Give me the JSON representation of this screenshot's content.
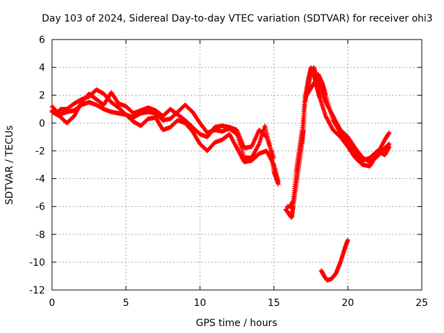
{
  "chart_data": {
    "type": "scatter",
    "title": "Day 103 of 2024, Sidereal Day-to-day VTEC variation (SDTVAR) for receiver ohi3",
    "xlabel": "GPS time / hours",
    "ylabel": "SDTVAR / TECUs",
    "xlim": [
      0,
      25
    ],
    "ylim": [
      -12,
      6
    ],
    "x_ticks": [
      0,
      5,
      10,
      15,
      20,
      25
    ],
    "y_ticks": [
      -12,
      -10,
      -8,
      -6,
      -4,
      -2,
      0,
      2,
      4,
      6
    ],
    "grid": true,
    "marker": "+",
    "color": "#ff0000",
    "series": [
      {
        "name": "track-1",
        "points": [
          [
            0.0,
            0.9
          ],
          [
            0.3,
            0.7
          ],
          [
            0.6,
            1.0
          ],
          [
            1.0,
            1.0
          ],
          [
            1.5,
            1.4
          ],
          [
            2.0,
            1.7
          ],
          [
            2.5,
            1.9
          ],
          [
            3.0,
            2.4
          ],
          [
            3.5,
            2.1
          ],
          [
            4.0,
            1.5
          ],
          [
            4.5,
            1.1
          ],
          [
            5.0,
            0.6
          ],
          [
            5.5,
            0.4
          ],
          [
            6.0,
            0.7
          ],
          [
            6.5,
            0.8
          ],
          [
            7.0,
            0.7
          ],
          [
            7.5,
            0.2
          ],
          [
            8.0,
            0.3
          ],
          [
            8.5,
            0.8
          ],
          [
            9.0,
            1.3
          ],
          [
            9.5,
            0.8
          ],
          [
            10.0,
            0.0
          ],
          [
            10.5,
            -0.7
          ],
          [
            11.0,
            -0.5
          ],
          [
            11.5,
            -0.6
          ],
          [
            12.0,
            -0.4
          ],
          [
            12.5,
            -0.8
          ],
          [
            13.0,
            -2.5
          ],
          [
            13.5,
            -2.5
          ],
          [
            14.0,
            -1.5
          ],
          [
            14.4,
            -0.2
          ],
          [
            14.8,
            -2.0
          ],
          [
            15.0,
            -3.5
          ],
          [
            15.3,
            -4.4
          ]
        ]
      },
      {
        "name": "track-2",
        "points": [
          [
            0.0,
            1.2
          ],
          [
            0.5,
            0.6
          ],
          [
            1.0,
            0.8
          ],
          [
            1.5,
            0.9
          ],
          [
            2.0,
            1.3
          ],
          [
            2.5,
            1.5
          ],
          [
            3.0,
            1.3
          ],
          [
            3.5,
            1.0
          ],
          [
            4.0,
            0.8
          ],
          [
            4.5,
            0.7
          ],
          [
            5.0,
            0.6
          ],
          [
            5.5,
            0.1
          ],
          [
            6.0,
            -0.2
          ],
          [
            6.5,
            0.3
          ],
          [
            7.0,
            0.4
          ],
          [
            7.5,
            -0.5
          ],
          [
            8.0,
            -0.3
          ],
          [
            8.5,
            0.2
          ],
          [
            9.0,
            0.0
          ],
          [
            9.5,
            -0.6
          ],
          [
            10.0,
            -1.5
          ],
          [
            10.5,
            -2.0
          ],
          [
            11.0,
            -1.4
          ],
          [
            11.5,
            -1.2
          ],
          [
            12.0,
            -0.8
          ],
          [
            12.5,
            -1.8
          ],
          [
            13.0,
            -2.8
          ],
          [
            13.5,
            -2.7
          ],
          [
            14.0,
            -2.2
          ],
          [
            14.5,
            -2.0
          ],
          [
            15.0,
            -3.0
          ],
          [
            15.3,
            -4.2
          ]
        ]
      },
      {
        "name": "track-3",
        "points": [
          [
            0.0,
            0.8
          ],
          [
            0.5,
            0.5
          ],
          [
            1.0,
            0.0
          ],
          [
            1.5,
            0.5
          ],
          [
            2.0,
            1.5
          ],
          [
            2.5,
            2.1
          ],
          [
            3.0,
            1.7
          ],
          [
            3.5,
            1.3
          ],
          [
            4.0,
            2.2
          ],
          [
            4.5,
            1.4
          ],
          [
            5.0,
            1.2
          ],
          [
            5.5,
            0.7
          ],
          [
            6.0,
            0.9
          ],
          [
            6.5,
            1.1
          ],
          [
            7.0,
            0.9
          ],
          [
            7.5,
            0.5
          ],
          [
            8.0,
            1.0
          ],
          [
            8.5,
            0.6
          ],
          [
            9.0,
            0.2
          ],
          [
            9.5,
            -0.3
          ],
          [
            10.0,
            -0.8
          ],
          [
            10.5,
            -1.0
          ],
          [
            11.0,
            -0.3
          ],
          [
            11.5,
            -0.2
          ],
          [
            12.0,
            -0.3
          ],
          [
            12.5,
            -0.5
          ],
          [
            13.0,
            -1.8
          ],
          [
            13.5,
            -1.7
          ],
          [
            14.0,
            -0.5
          ],
          [
            14.5,
            -1.0
          ],
          [
            15.0,
            -2.5
          ]
        ]
      },
      {
        "name": "track-4",
        "points": [
          [
            15.8,
            -6.2
          ],
          [
            16.0,
            -6.5
          ],
          [
            16.2,
            -6.8
          ],
          [
            16.3,
            -6.0
          ],
          [
            16.5,
            -4.5
          ],
          [
            16.7,
            -3.0
          ],
          [
            16.9,
            -1.5
          ],
          [
            17.0,
            -0.5
          ],
          [
            17.1,
            1.5
          ],
          [
            17.3,
            2.5
          ],
          [
            17.5,
            3.6
          ],
          [
            17.7,
            4.0
          ],
          [
            17.9,
            3.2
          ],
          [
            18.2,
            2.5
          ],
          [
            18.5,
            1.5
          ],
          [
            19.0,
            0.5
          ],
          [
            19.5,
            -0.5
          ],
          [
            20.0,
            -1.0
          ],
          [
            20.5,
            -1.8
          ],
          [
            21.0,
            -2.5
          ],
          [
            21.5,
            -2.8
          ],
          [
            22.0,
            -2.4
          ],
          [
            22.5,
            -1.8
          ],
          [
            22.8,
            -1.5
          ]
        ]
      },
      {
        "name": "track-5",
        "points": [
          [
            15.9,
            -6.0
          ],
          [
            16.1,
            -6.0
          ],
          [
            16.3,
            -5.6
          ],
          [
            16.5,
            -3.5
          ],
          [
            16.7,
            -2.0
          ],
          [
            16.9,
            -0.5
          ],
          [
            17.1,
            1.8
          ],
          [
            17.3,
            3.0
          ],
          [
            17.5,
            4.0
          ],
          [
            17.7,
            3.5
          ],
          [
            17.9,
            2.6
          ],
          [
            18.1,
            1.8
          ],
          [
            18.5,
            0.5
          ],
          [
            19.0,
            -0.5
          ],
          [
            19.5,
            -1.0
          ],
          [
            20.0,
            -1.7
          ],
          [
            20.5,
            -2.5
          ],
          [
            21.0,
            -3.0
          ],
          [
            21.5,
            -3.1
          ],
          [
            22.0,
            -2.2
          ],
          [
            22.5,
            -1.2
          ],
          [
            22.8,
            -0.7
          ]
        ]
      },
      {
        "name": "track-6",
        "points": [
          [
            17.2,
            2.0
          ],
          [
            17.5,
            2.5
          ],
          [
            17.8,
            3.0
          ],
          [
            18.0,
            3.5
          ],
          [
            18.3,
            2.8
          ],
          [
            18.5,
            2.0
          ],
          [
            19.0,
            0.2
          ],
          [
            19.5,
            -0.7
          ],
          [
            20.0,
            -1.4
          ],
          [
            20.5,
            -2.2
          ],
          [
            21.0,
            -2.7
          ],
          [
            21.5,
            -2.5
          ],
          [
            22.0,
            -2.0
          ],
          [
            22.5,
            -2.3
          ],
          [
            22.8,
            -1.7
          ]
        ]
      },
      {
        "name": "track-7",
        "points": [
          [
            18.2,
            -10.6
          ],
          [
            18.4,
            -11.0
          ],
          [
            18.6,
            -11.3
          ],
          [
            18.9,
            -11.2
          ],
          [
            19.2,
            -10.8
          ],
          [
            19.5,
            -10.0
          ],
          [
            19.8,
            -9.0
          ],
          [
            20.0,
            -8.4
          ]
        ]
      }
    ]
  }
}
